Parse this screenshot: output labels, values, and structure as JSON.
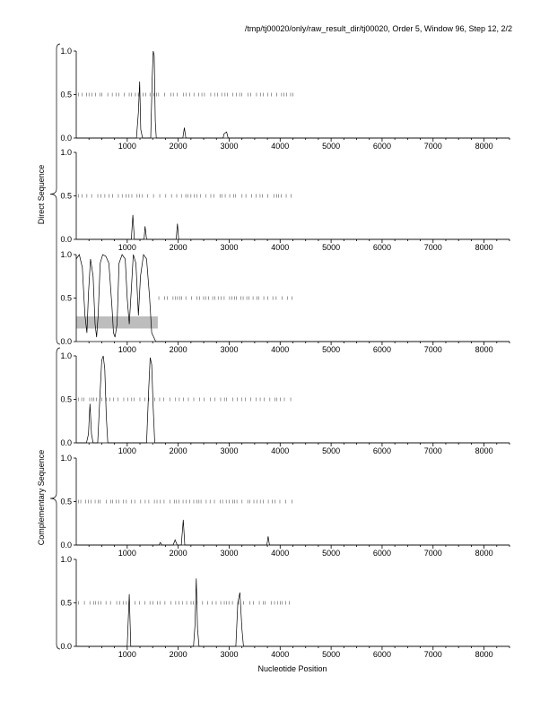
{
  "header": {
    "title": "/tmp/tj00020/only/raw_result_dir/tj00020, Order 5, Window 96, Step 12, 2/2"
  },
  "axes": {
    "xlabel": "Nucleotide Position",
    "group_labels": [
      "Direct Sequence",
      "Complementary Sequence"
    ]
  },
  "chart_data": {
    "type": "line",
    "title": "/tmp/tj00020/only/raw_result_dir/tj00020, Order 5, Window 96, Step 12, 2/2",
    "xlabel": "Nucleotide Position",
    "ylabel": "",
    "xlim": [
      0,
      8500
    ],
    "ylim": [
      0,
      1
    ],
    "x_ticks": [
      1000,
      2000,
      3000,
      4000,
      5000,
      6000,
      7000,
      8000
    ],
    "y_ticks": [
      0.0,
      0.5,
      1.0
    ],
    "tick_labels_x": [
      "1000",
      "2000",
      "3000",
      "4000",
      "5000",
      "6000",
      "7000",
      "8000"
    ],
    "tick_labels_y": [
      "0.0",
      "0.5",
      "1.0"
    ],
    "grid": false,
    "marker_row_y": 0.5,
    "marker_row_xrange": [
      0,
      4250
    ],
    "panels": [
      {
        "group": "Direct Sequence",
        "frame": 1,
        "series": [
          [
            0,
            0
          ],
          [
            1180,
            0
          ],
          [
            1220,
            0.3
          ],
          [
            1245,
            0.65
          ],
          [
            1265,
            0.1
          ],
          [
            1300,
            0
          ],
          [
            1460,
            0
          ],
          [
            1490,
            0.7
          ],
          [
            1510,
            1.0
          ],
          [
            1530,
            0.95
          ],
          [
            1550,
            0.2
          ],
          [
            1570,
            0
          ],
          [
            2090,
            0
          ],
          [
            2120,
            0.12
          ],
          [
            2150,
            0
          ],
          [
            2880,
            0
          ],
          [
            2900,
            0.05
          ],
          [
            2950,
            0.07
          ],
          [
            2980,
            0
          ],
          [
            8500,
            0
          ]
        ],
        "shaded": null
      },
      {
        "group": "Direct Sequence",
        "frame": 2,
        "series": [
          [
            0,
            0
          ],
          [
            1080,
            0
          ],
          [
            1110,
            0.28
          ],
          [
            1140,
            0
          ],
          [
            1330,
            0
          ],
          [
            1350,
            0.15
          ],
          [
            1380,
            0
          ],
          [
            1960,
            0
          ],
          [
            1985,
            0.18
          ],
          [
            2010,
            0
          ],
          [
            8500,
            0
          ]
        ],
        "shaded": null
      },
      {
        "group": "Direct Sequence",
        "frame": 3,
        "series": [
          [
            0,
            0.95
          ],
          [
            60,
            1.0
          ],
          [
            120,
            0.85
          ],
          [
            170,
            0.3
          ],
          [
            210,
            0.1
          ],
          [
            240,
            0.55
          ],
          [
            280,
            0.95
          ],
          [
            330,
            0.75
          ],
          [
            370,
            0.2
          ],
          [
            400,
            0.05
          ],
          [
            430,
            0.3
          ],
          [
            470,
            0.9
          ],
          [
            520,
            1.0
          ],
          [
            580,
            0.98
          ],
          [
            640,
            0.9
          ],
          [
            700,
            0.4
          ],
          [
            730,
            0.1
          ],
          [
            760,
            0.05
          ],
          [
            800,
            0.2
          ],
          [
            840,
            0.9
          ],
          [
            900,
            1.0
          ],
          [
            960,
            0.95
          ],
          [
            1000,
            0.5
          ],
          [
            1040,
            0.2
          ],
          [
            1080,
            0.6
          ],
          [
            1120,
            1.0
          ],
          [
            1170,
            0.9
          ],
          [
            1220,
            0.3
          ],
          [
            1260,
            0.75
          ],
          [
            1320,
            1.0
          ],
          [
            1380,
            0.95
          ],
          [
            1440,
            0.5
          ],
          [
            1480,
            0.1
          ],
          [
            1520,
            0.05
          ],
          [
            1560,
            0
          ],
          [
            8500,
            0
          ]
        ],
        "shaded": {
          "x_range": [
            0,
            1600
          ],
          "y_range": [
            0.15,
            0.29
          ]
        }
      },
      {
        "group": "Complementary Sequence",
        "frame": 1,
        "series": [
          [
            0,
            0
          ],
          [
            200,
            0
          ],
          [
            240,
            0.1
          ],
          [
            270,
            0.45
          ],
          [
            300,
            0.1
          ],
          [
            330,
            0
          ],
          [
            420,
            0
          ],
          [
            470,
            0.6
          ],
          [
            500,
            0.95
          ],
          [
            530,
            1.0
          ],
          [
            560,
            0.85
          ],
          [
            590,
            0.3
          ],
          [
            620,
            0
          ],
          [
            1380,
            0
          ],
          [
            1420,
            0.6
          ],
          [
            1450,
            0.98
          ],
          [
            1480,
            0.9
          ],
          [
            1510,
            0.4
          ],
          [
            1540,
            0
          ],
          [
            8500,
            0
          ]
        ],
        "shaded": null
      },
      {
        "group": "Complementary Sequence",
        "frame": 2,
        "series": [
          [
            0,
            0
          ],
          [
            1620,
            0
          ],
          [
            1650,
            0.03
          ],
          [
            1680,
            0
          ],
          [
            1900,
            0
          ],
          [
            1940,
            0.06
          ],
          [
            1980,
            0
          ],
          [
            2060,
            0
          ],
          [
            2100,
            0.29
          ],
          [
            2130,
            0
          ],
          [
            3740,
            0
          ],
          [
            3765,
            0.1
          ],
          [
            3790,
            0
          ],
          [
            8500,
            0
          ]
        ],
        "shaded": null
      },
      {
        "group": "Complementary Sequence",
        "frame": 3,
        "series": [
          [
            0,
            0
          ],
          [
            1000,
            0
          ],
          [
            1040,
            0.6
          ],
          [
            1070,
            0
          ],
          [
            2300,
            0
          ],
          [
            2330,
            0.25
          ],
          [
            2355,
            0.78
          ],
          [
            2380,
            0.2
          ],
          [
            2410,
            0
          ],
          [
            3130,
            0
          ],
          [
            3170,
            0.5
          ],
          [
            3210,
            0.62
          ],
          [
            3250,
            0.2
          ],
          [
            3280,
            0
          ],
          [
            8500,
            0
          ]
        ],
        "shaded": null
      }
    ]
  }
}
